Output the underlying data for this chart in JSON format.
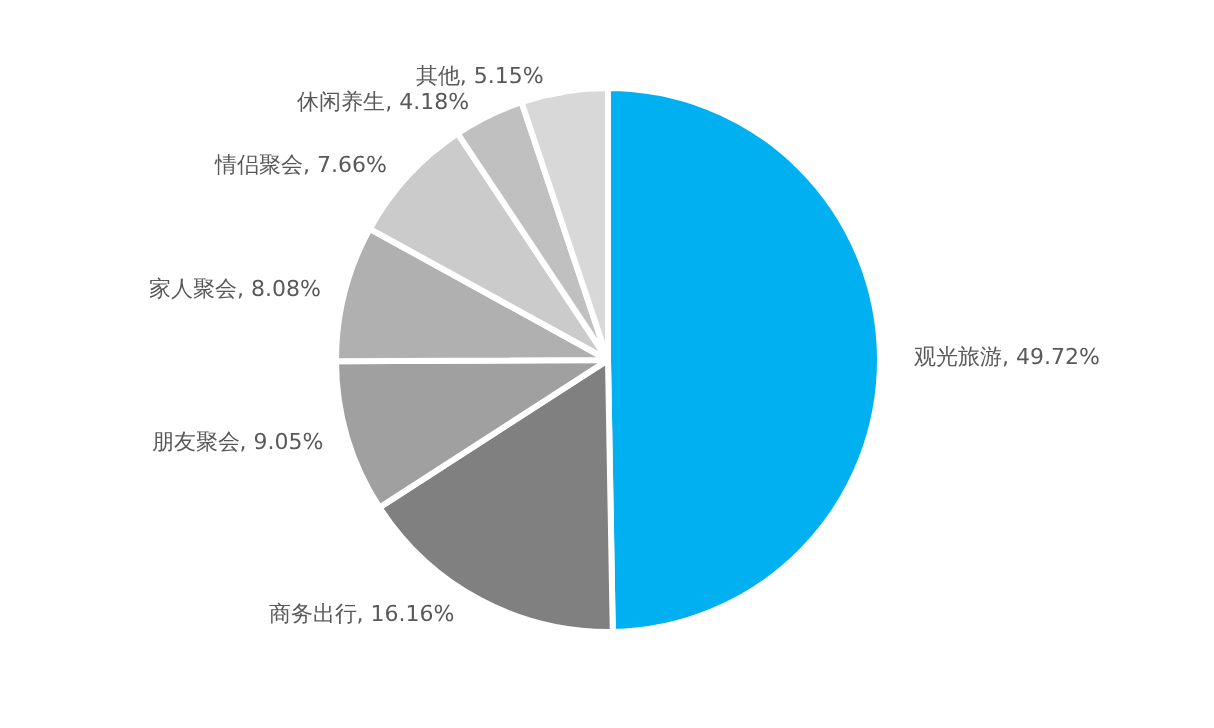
{
  "chart_data": {
    "type": "pie",
    "categories": [
      "观光旅游",
      "商务出行",
      "朋友聚会",
      "家人聚会",
      "情侣聚会",
      "休闲养生",
      "其他"
    ],
    "values": [
      49.72,
      16.16,
      9.05,
      8.08,
      7.66,
      4.18,
      5.15
    ],
    "value_labels": [
      ", 49.72%",
      ", 16.16%",
      ", 9.05%",
      ", 8.08%",
      ", 7.66%",
      ", 4.18%",
      ", 5.15%"
    ],
    "colors": [
      "#00b0f0",
      "#808080",
      "#a0a0a0",
      "#b0b0b0",
      "#cbcbcb",
      "#c0c0c0",
      "#d8d8d8"
    ],
    "legend": false
  }
}
